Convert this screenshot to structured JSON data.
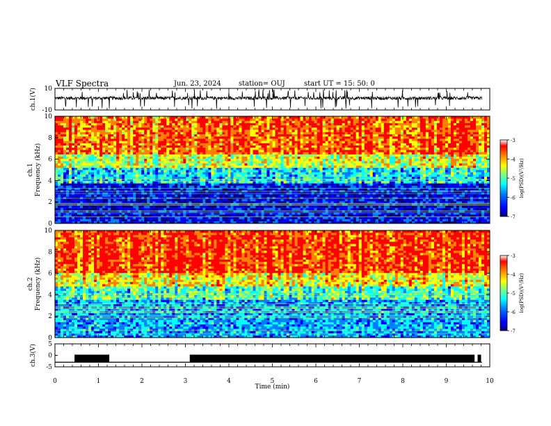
{
  "header": {
    "title": "VLF Spectra",
    "date": "Jun. 23, 2024",
    "station": "station= OUJ",
    "start": "start  UT =   15: 50: 0"
  },
  "colors": {
    "spectral_scale": [
      "#000080",
      "#0000ff",
      "#0080ff",
      "#00ffff",
      "#80ff80",
      "#ffff00",
      "#ff8000",
      "#ff0000",
      "#ffffff"
    ],
    "trace": "#000000"
  },
  "chart_data": [
    {
      "type": "line",
      "panel": "ch1-waveform",
      "ylabel": "ch.1(V)",
      "ylim": [
        -10,
        10
      ],
      "yticks": [
        "10",
        "-10"
      ],
      "x_range_min": [
        0,
        10
      ],
      "description_values": {
        "baseline_v": 0,
        "noise_amplitude_v": 3,
        "spike_amplitude_v": 9
      }
    },
    {
      "type": "heatmap",
      "panel": "ch1-spectrogram",
      "ylabel": "ch.1\nFrequency (kHz)",
      "ylim": [
        0,
        10
      ],
      "yticks": [
        "0",
        "2",
        "4",
        "6",
        "8",
        "10"
      ],
      "colorbar": {
        "label": "log(PSD)(V²/Hz)",
        "range": [
          -7,
          -3
        ],
        "ticks": [
          "-7",
          "-6",
          "-5",
          "-4",
          "-3"
        ]
      },
      "zone_profile": [
        {
          "freq_khz": [
            0,
            3.8
          ],
          "log_psd": -6.3
        },
        {
          "freq_khz": [
            3.8,
            5.2
          ],
          "log_psd": -5.3
        },
        {
          "freq_khz": [
            5.2,
            6.5
          ],
          "log_psd": -4.4
        },
        {
          "freq_khz": [
            6.5,
            10
          ],
          "log_psd": -3.6
        }
      ]
    },
    {
      "type": "heatmap",
      "panel": "ch2-spectrogram",
      "ylabel": "ch.2\nFrequency (kHz)",
      "ylim": [
        0,
        10
      ],
      "yticks": [
        "0",
        "2",
        "4",
        "6",
        "8",
        "10"
      ],
      "colorbar": {
        "label": "log(PSD)(V²/Hz)",
        "range": [
          -7,
          -3
        ],
        "ticks": [
          "-7",
          "-6",
          "-5",
          "-4",
          "-3"
        ]
      },
      "zone_profile": [
        {
          "freq_khz": [
            0,
            3.5
          ],
          "log_psd": -5.6
        },
        {
          "freq_khz": [
            3.5,
            4.8
          ],
          "log_psd": -5.0
        },
        {
          "freq_khz": [
            4.8,
            6.0
          ],
          "log_psd": -4.2
        },
        {
          "freq_khz": [
            6.0,
            10
          ],
          "log_psd": -3.4
        }
      ]
    },
    {
      "type": "line",
      "panel": "ch3-trace",
      "ylabel": "ch.3(V)",
      "ylim": [
        -5,
        5
      ],
      "yticks": [
        "5",
        "0",
        "-5"
      ],
      "segments_min": [
        [
          0.45,
          1.25
        ],
        [
          3.1,
          9.65
        ],
        [
          9.72,
          9.8
        ]
      ],
      "level_on_v": 0,
      "level_off_v": -3
    }
  ],
  "xaxis": {
    "label": "Time (min)",
    "range": [
      0,
      10
    ],
    "ticks": [
      "0",
      "1",
      "2",
      "3",
      "4",
      "5",
      "6",
      "7",
      "8",
      "9",
      "10"
    ]
  }
}
